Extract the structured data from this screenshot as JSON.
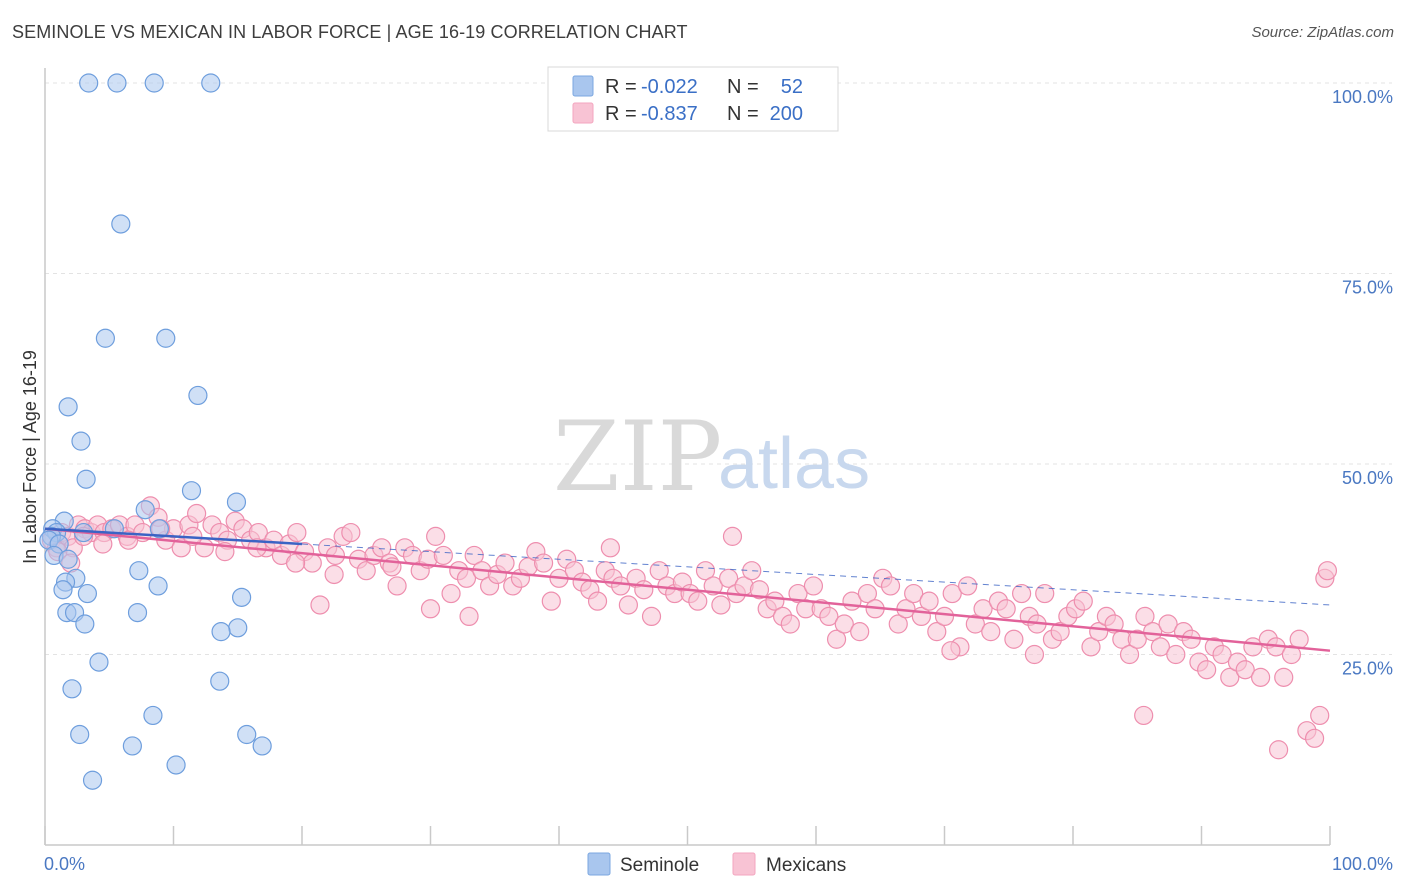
{
  "title": "SEMINOLE VS MEXICAN IN LABOR FORCE | AGE 16-19 CORRELATION CHART",
  "source": "Source: ZipAtlas.com",
  "watermark": {
    "zip": "ZIP",
    "atlas": "atlas"
  },
  "legend_top": {
    "r_label": "R =",
    "n_label": "N =",
    "rows": [
      {
        "r": "-0.022",
        "n": "52",
        "color": "#7ba7e0"
      },
      {
        "r": "-0.837",
        "n": "200",
        "color": "#f3a6bf"
      }
    ]
  },
  "legend_bottom": [
    {
      "name": "Seminole",
      "color": "#7ba7e0"
    },
    {
      "name": "Mexicans",
      "color": "#f3a6bf"
    }
  ],
  "colors": {
    "seminole_fill": "#a9c6ee",
    "seminole_stroke": "#6e9edd",
    "mexican_fill": "#f8c3d4",
    "mexican_stroke": "#ee8eae",
    "seminole_line": "#3b63c4",
    "mexican_line": "#e2629a",
    "axis_text": "#4a78c2"
  },
  "chart_data": {
    "type": "scatter",
    "title": "SEMINOLE VS MEXICAN IN LABOR FORCE | AGE 16-19 CORRELATION CHART",
    "xlabel": "",
    "ylabel": "In Labor Force | Age 16-19",
    "xlim": [
      0,
      100
    ],
    "ylim": [
      0,
      102
    ],
    "x_tick_labels": [
      "0.0%",
      "100.0%"
    ],
    "y_ticks": [
      25,
      50,
      75,
      100
    ],
    "y_tick_labels": [
      "25.0%",
      "50.0%",
      "75.0%",
      "100.0%"
    ],
    "grid": true,
    "legend_placement": "top-center",
    "series": [
      {
        "name": "Seminole",
        "r": -0.022,
        "n": 52,
        "trend": {
          "x": [
            0,
            20
          ],
          "y": [
            41.5,
            39.5
          ],
          "extended_to": [
            100,
            31.5
          ]
        },
        "points": [
          [
            3.4,
            100
          ],
          [
            5.6,
            100
          ],
          [
            8.5,
            100
          ],
          [
            12.9,
            100
          ],
          [
            5.9,
            81.5
          ],
          [
            4.7,
            66.5
          ],
          [
            9.4,
            66.5
          ],
          [
            11.9,
            59
          ],
          [
            1.8,
            57.5
          ],
          [
            2.8,
            53
          ],
          [
            3.2,
            48
          ],
          [
            11.4,
            46.5
          ],
          [
            14.9,
            45
          ],
          [
            7.8,
            44
          ],
          [
            1.5,
            42.5
          ],
          [
            0.6,
            41.5
          ],
          [
            0.9,
            41
          ],
          [
            0.5,
            40.5
          ],
          [
            0.3,
            40
          ],
          [
            1.1,
            39.5
          ],
          [
            3.0,
            41
          ],
          [
            5.4,
            41.5
          ],
          [
            8.9,
            41.5
          ],
          [
            0.7,
            38
          ],
          [
            1.8,
            37.5
          ],
          [
            7.3,
            36
          ],
          [
            2.4,
            35
          ],
          [
            1.6,
            34.5
          ],
          [
            1.4,
            33.5
          ],
          [
            8.8,
            34
          ],
          [
            3.3,
            33
          ],
          [
            15.3,
            32.5
          ],
          [
            1.7,
            30.5
          ],
          [
            2.3,
            30.5
          ],
          [
            7.2,
            30.5
          ],
          [
            3.1,
            29
          ],
          [
            15.0,
            28.5
          ],
          [
            13.7,
            28
          ],
          [
            4.2,
            24
          ],
          [
            2.1,
            20.5
          ],
          [
            13.6,
            21.5
          ],
          [
            2.7,
            14.5
          ],
          [
            8.4,
            17
          ],
          [
            15.7,
            14.5
          ],
          [
            6.8,
            13
          ],
          [
            16.9,
            13
          ],
          [
            10.2,
            10.5
          ],
          [
            3.7,
            8.5
          ]
        ]
      },
      {
        "name": "Mexicans",
        "r": -0.837,
        "n": 200,
        "trend": {
          "x": [
            0,
            100
          ],
          "y": [
            41.5,
            25.5
          ]
        },
        "points": [
          [
            0.5,
            40
          ],
          [
            0.9,
            39
          ],
          [
            1.3,
            41
          ],
          [
            1.8,
            40.5
          ],
          [
            2.2,
            39
          ],
          [
            2.6,
            42
          ],
          [
            3.1,
            41.5
          ],
          [
            3.6,
            41
          ],
          [
            4.1,
            42
          ],
          [
            4.6,
            41
          ],
          [
            5.2,
            41.5
          ],
          [
            5.8,
            42
          ],
          [
            6.4,
            40.5
          ],
          [
            7.0,
            42
          ],
          [
            7.6,
            41
          ],
          [
            8.2,
            44.5
          ],
          [
            8.8,
            43
          ],
          [
            9.4,
            40
          ],
          [
            10.0,
            41.5
          ],
          [
            10.6,
            39
          ],
          [
            11.2,
            42
          ],
          [
            11.8,
            43.5
          ],
          [
            12.4,
            39
          ],
          [
            13.0,
            42
          ],
          [
            13.6,
            41
          ],
          [
            14.2,
            40
          ],
          [
            14.8,
            42.5
          ],
          [
            15.4,
            41.5
          ],
          [
            16.0,
            40
          ],
          [
            16.6,
            41
          ],
          [
            17.2,
            39
          ],
          [
            17.8,
            40
          ],
          [
            18.4,
            38
          ],
          [
            19.0,
            39.5
          ],
          [
            19.6,
            41
          ],
          [
            20.2,
            38.5
          ],
          [
            20.8,
            37
          ],
          [
            21.4,
            31.5
          ],
          [
            22.0,
            39
          ],
          [
            22.6,
            38
          ],
          [
            23.2,
            40.5
          ],
          [
            23.8,
            41
          ],
          [
            24.4,
            37.5
          ],
          [
            25.0,
            36
          ],
          [
            25.6,
            38
          ],
          [
            26.2,
            39
          ],
          [
            26.8,
            37
          ],
          [
            27.4,
            34
          ],
          [
            28.0,
            39
          ],
          [
            28.6,
            38
          ],
          [
            29.2,
            36
          ],
          [
            29.8,
            37.5
          ],
          [
            30.4,
            40.5
          ],
          [
            31.0,
            38
          ],
          [
            31.6,
            33
          ],
          [
            32.2,
            36
          ],
          [
            32.8,
            35
          ],
          [
            33.4,
            38
          ],
          [
            34.0,
            36
          ],
          [
            34.6,
            34
          ],
          [
            35.2,
            35.5
          ],
          [
            35.8,
            37
          ],
          [
            36.4,
            34
          ],
          [
            37.0,
            35
          ],
          [
            37.6,
            36.5
          ],
          [
            38.2,
            38.5
          ],
          [
            38.8,
            37
          ],
          [
            39.4,
            32
          ],
          [
            40.0,
            35
          ],
          [
            40.6,
            37.5
          ],
          [
            41.2,
            36
          ],
          [
            41.8,
            34.5
          ],
          [
            42.4,
            33.5
          ],
          [
            43.0,
            32
          ],
          [
            43.6,
            36
          ],
          [
            44.2,
            35
          ],
          [
            44.8,
            34
          ],
          [
            45.4,
            31.5
          ],
          [
            46.0,
            35
          ],
          [
            46.6,
            33.5
          ],
          [
            47.2,
            30
          ],
          [
            47.8,
            36
          ],
          [
            48.4,
            34
          ],
          [
            49.0,
            33
          ],
          [
            49.6,
            34.5
          ],
          [
            50.2,
            33
          ],
          [
            50.8,
            32
          ],
          [
            51.4,
            36
          ],
          [
            52.0,
            34
          ],
          [
            52.6,
            31.5
          ],
          [
            53.2,
            35
          ],
          [
            53.8,
            33
          ],
          [
            54.4,
            34
          ],
          [
            55.0,
            36
          ],
          [
            55.6,
            33.5
          ],
          [
            56.2,
            31
          ],
          [
            56.8,
            32
          ],
          [
            57.4,
            30
          ],
          [
            58.0,
            29
          ],
          [
            58.6,
            33
          ],
          [
            59.2,
            31
          ],
          [
            59.8,
            34
          ],
          [
            60.4,
            31
          ],
          [
            61.0,
            30
          ],
          [
            61.6,
            27
          ],
          [
            62.2,
            29
          ],
          [
            62.8,
            32
          ],
          [
            63.4,
            28
          ],
          [
            64.0,
            33
          ],
          [
            64.6,
            31
          ],
          [
            65.2,
            35
          ],
          [
            65.8,
            34
          ],
          [
            66.4,
            29
          ],
          [
            67.0,
            31
          ],
          [
            67.6,
            33
          ],
          [
            68.2,
            30
          ],
          [
            68.8,
            32
          ],
          [
            69.4,
            28
          ],
          [
            70.0,
            30
          ],
          [
            70.6,
            33
          ],
          [
            71.2,
            26
          ],
          [
            71.8,
            34
          ],
          [
            72.4,
            29
          ],
          [
            73.0,
            31
          ],
          [
            73.6,
            28
          ],
          [
            74.2,
            32
          ],
          [
            74.8,
            31
          ],
          [
            75.4,
            27
          ],
          [
            76.0,
            33
          ],
          [
            76.6,
            30
          ],
          [
            77.2,
            29
          ],
          [
            77.8,
            33
          ],
          [
            78.4,
            27
          ],
          [
            79.0,
            28
          ],
          [
            79.6,
            30
          ],
          [
            80.2,
            31
          ],
          [
            80.8,
            32
          ],
          [
            81.4,
            26
          ],
          [
            82.0,
            28
          ],
          [
            82.6,
            30
          ],
          [
            83.2,
            29
          ],
          [
            83.8,
            27
          ],
          [
            84.4,
            25
          ],
          [
            85.0,
            27
          ],
          [
            85.6,
            30
          ],
          [
            86.2,
            28
          ],
          [
            86.8,
            26
          ],
          [
            87.4,
            29
          ],
          [
            88.0,
            25
          ],
          [
            88.6,
            28
          ],
          [
            89.2,
            27
          ],
          [
            89.8,
            24
          ],
          [
            90.4,
            23
          ],
          [
            91.0,
            26
          ],
          [
            91.6,
            25
          ],
          [
            92.2,
            22
          ],
          [
            92.8,
            24
          ],
          [
            93.4,
            23
          ],
          [
            94.0,
            26
          ],
          [
            94.6,
            22
          ],
          [
            95.2,
            27
          ],
          [
            95.8,
            26
          ],
          [
            96.4,
            22
          ],
          [
            97.0,
            25
          ],
          [
            97.6,
            27
          ],
          [
            98.2,
            15
          ],
          [
            98.8,
            14
          ],
          [
            99.2,
            17
          ],
          [
            99.6,
            35
          ],
          [
            99.8,
            36
          ],
          [
            1.0,
            38.5
          ],
          [
            2.0,
            37
          ],
          [
            3.0,
            40.5
          ],
          [
            4.5,
            39.5
          ],
          [
            6.5,
            40
          ],
          [
            9.0,
            41.5
          ],
          [
            11.5,
            40.5
          ],
          [
            14.0,
            38.5
          ],
          [
            16.5,
            39
          ],
          [
            19.5,
            37
          ],
          [
            22.5,
            35.5
          ],
          [
            27.0,
            36.5
          ],
          [
            30.0,
            31
          ],
          [
            33.0,
            30
          ],
          [
            44.0,
            39
          ],
          [
            53.5,
            40.5
          ],
          [
            70.5,
            25.5
          ],
          [
            77.0,
            25
          ],
          [
            85.5,
            17
          ],
          [
            96.0,
            12.5
          ]
        ]
      }
    ]
  }
}
